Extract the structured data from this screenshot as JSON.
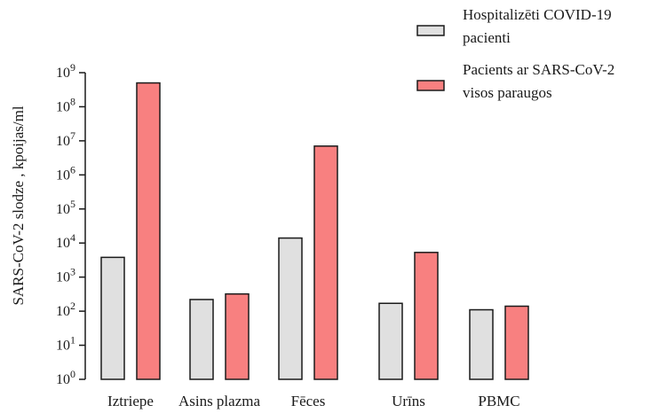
{
  "chart_data": {
    "type": "bar",
    "scale": "log10",
    "ylabel": "SARS-CoV-2 slodze , kpoijas/ml",
    "xlabel": "",
    "ylim": [
      1,
      1000000000
    ],
    "yticks": [
      {
        "base": "10",
        "exp": "0"
      },
      {
        "base": "10",
        "exp": "1"
      },
      {
        "base": "10",
        "exp": "2"
      },
      {
        "base": "10",
        "exp": "3"
      },
      {
        "base": "10",
        "exp": "4"
      },
      {
        "base": "10",
        "exp": "5"
      },
      {
        "base": "10",
        "exp": "6"
      },
      {
        "base": "10",
        "exp": "7"
      },
      {
        "base": "10",
        "exp": "8"
      },
      {
        "base": "10",
        "exp": "9"
      }
    ],
    "categories": [
      "Iztriepe",
      "Asins plazma",
      "Fēces",
      "Urīns",
      "PBMC"
    ],
    "series": [
      {
        "name_lines": [
          "Hospitalizēti COVID-19",
          "pacienti"
        ],
        "color": "#e0e0e0",
        "values": [
          3800,
          220,
          14000,
          170,
          110
        ]
      },
      {
        "name_lines": [
          "Pacients ar SARS-CoV-2",
          "visos paraugos"
        ],
        "color": "#f88080",
        "values": [
          500000000,
          320,
          7000000,
          5300,
          140
        ]
      }
    ],
    "grid": false,
    "legend_position": "top-right"
  }
}
